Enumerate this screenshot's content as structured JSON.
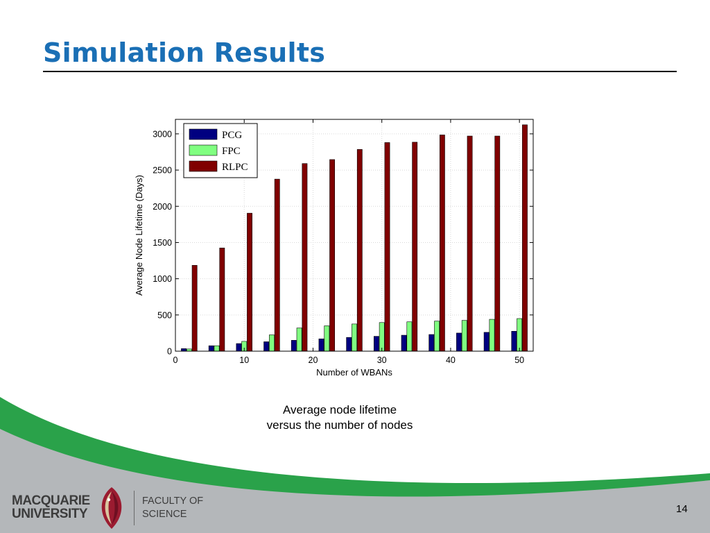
{
  "slide": {
    "title": "Simulation Results",
    "caption_line1": "Average node lifetime",
    "caption_line2": "versus the number of nodes",
    "page_number": "14",
    "logo": {
      "university_line1": "MACQUARIE",
      "university_line2": "UNIVERSITY",
      "faculty_line1": "FACULTY OF",
      "faculty_line2": "SCIENCE"
    },
    "colors": {
      "title": "#1a6fb5",
      "footer_green": "#2aa24a",
      "footer_grey": "#b4b7ba"
    }
  },
  "chart_data": {
    "type": "bar",
    "categories": [
      2,
      6,
      10,
      14,
      18,
      22,
      26,
      30,
      34,
      38,
      42,
      46,
      50
    ],
    "series": [
      {
        "name": "PCG",
        "color": "#000080",
        "values": [
          35,
          75,
          105,
          130,
          150,
          170,
          190,
          205,
          220,
          230,
          250,
          260,
          275
        ]
      },
      {
        "name": "FPC",
        "color": "#80ff80",
        "values": [
          30,
          75,
          135,
          225,
          320,
          350,
          375,
          395,
          405,
          415,
          425,
          440,
          450
        ]
      },
      {
        "name": "RLPC",
        "color": "#800000",
        "values": [
          1185,
          1425,
          1905,
          2375,
          2590,
          2645,
          2785,
          2880,
          2885,
          2985,
          2970,
          2970,
          3125
        ]
      }
    ],
    "xlabel": "Number of WBANs",
    "ylabel": "Average Node Lifetime (Days)",
    "xlim": [
      0,
      52
    ],
    "ylim": [
      0,
      3200
    ],
    "xticks": [
      0,
      10,
      20,
      30,
      40,
      50
    ],
    "yticks": [
      0,
      500,
      1000,
      1500,
      2000,
      2500,
      3000
    ],
    "grid": true,
    "legend_position": "top-left"
  }
}
